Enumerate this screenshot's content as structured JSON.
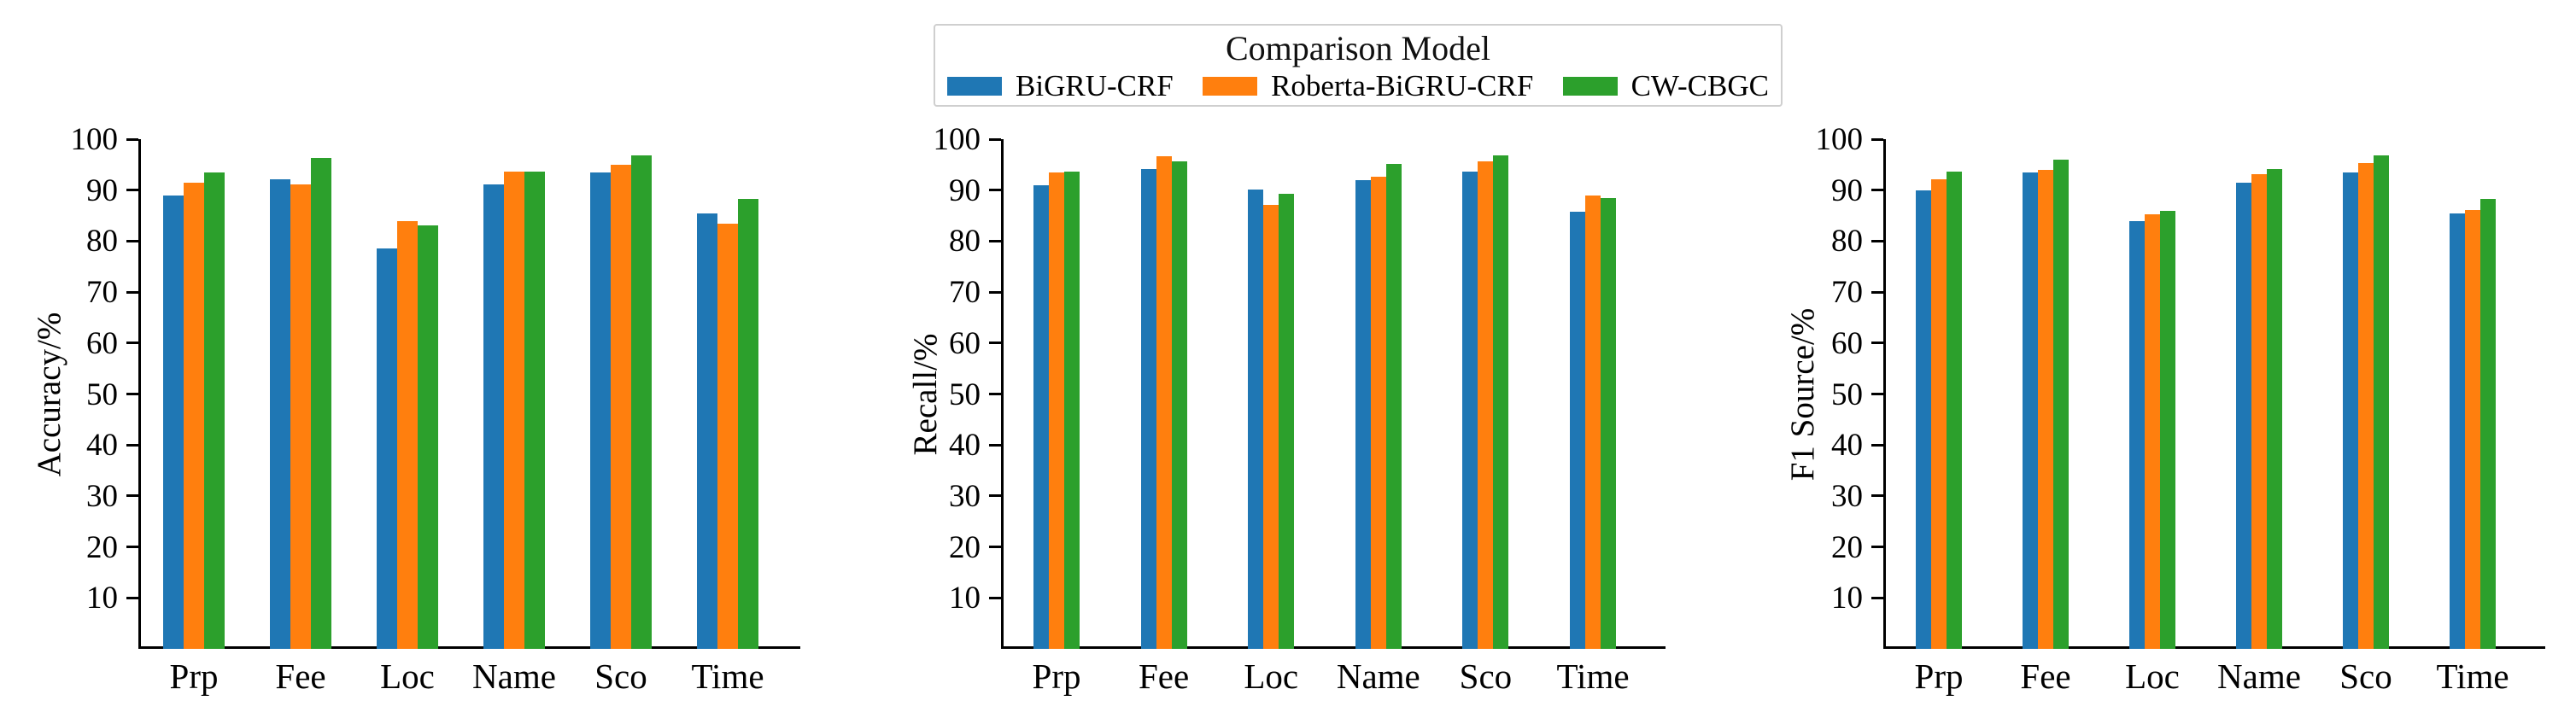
{
  "legend": {
    "title": "Comparison Model",
    "position": "upper center",
    "entries": [
      {
        "label": "BiGRU-CRF",
        "color": "#1f77b4",
        "icon": "blue-swatch-icon"
      },
      {
        "label": "Roberta-BiGRU-CRF",
        "color": "#ff7f0e",
        "icon": "orange-swatch-icon"
      },
      {
        "label": "CW-CBGC",
        "color": "#2ca02c",
        "icon": "green-swatch-icon"
      }
    ]
  },
  "chart_data": [
    {
      "type": "bar",
      "title": "",
      "xlabel": "",
      "ylabel": "Accuracy/%",
      "categories": [
        "Prp",
        "Fee",
        "Loc",
        "Name",
        "Sco",
        "Time"
      ],
      "series": [
        {
          "name": "BiGRU-CRF",
          "color": "#1f77b4",
          "values": [
            88.9,
            92.1,
            78.6,
            91.2,
            93.4,
            85.4
          ]
        },
        {
          "name": "Roberta-BiGRU-CRF",
          "color": "#ff7f0e",
          "values": [
            91.4,
            91.1,
            84.0,
            93.7,
            94.9,
            83.4
          ]
        },
        {
          "name": "CW-CBGC",
          "color": "#2ca02c",
          "values": [
            93.4,
            96.3,
            83.0,
            93.7,
            96.8,
            88.3
          ]
        }
      ],
      "ylim": [
        0,
        100
      ],
      "yticks": [
        10,
        20,
        30,
        40,
        50,
        60,
        70,
        80,
        90,
        100
      ],
      "grid": false
    },
    {
      "type": "bar",
      "title": "",
      "xlabel": "",
      "ylabel": "Recall/%",
      "categories": [
        "Prp",
        "Fee",
        "Loc",
        "Name",
        "Sco",
        "Time"
      ],
      "series": [
        {
          "name": "BiGRU-CRF",
          "color": "#1f77b4",
          "values": [
            90.9,
            94.2,
            90.2,
            92.0,
            93.7,
            85.7
          ]
        },
        {
          "name": "Roberta-BiGRU-CRF",
          "color": "#ff7f0e",
          "values": [
            93.4,
            96.7,
            87.1,
            92.7,
            95.7,
            89.0
          ]
        },
        {
          "name": "CW-CBGC",
          "color": "#2ca02c",
          "values": [
            93.6,
            95.6,
            89.2,
            95.2,
            96.8,
            88.5
          ]
        }
      ],
      "ylim": [
        0,
        100
      ],
      "yticks": [
        10,
        20,
        30,
        40,
        50,
        60,
        70,
        80,
        90,
        100
      ],
      "grid": false
    },
    {
      "type": "bar",
      "title": "",
      "xlabel": "",
      "ylabel": "F1 Source/%",
      "categories": [
        "Prp",
        "Fee",
        "Loc",
        "Name",
        "Sco",
        "Time"
      ],
      "series": [
        {
          "name": "BiGRU-CRF",
          "color": "#1f77b4",
          "values": [
            90.0,
            93.5,
            83.9,
            91.4,
            93.4,
            85.4
          ]
        },
        {
          "name": "Roberta-BiGRU-CRF",
          "color": "#ff7f0e",
          "values": [
            92.2,
            93.9,
            85.2,
            93.1,
            95.3,
            86.1
          ]
        },
        {
          "name": "CW-CBGC",
          "color": "#2ca02c",
          "values": [
            93.6,
            96.0,
            86.0,
            94.2,
            96.9,
            88.3
          ]
        }
      ],
      "ylim": [
        0,
        100
      ],
      "yticks": [
        10,
        20,
        30,
        40,
        50,
        60,
        70,
        80,
        90,
        100
      ],
      "grid": false
    }
  ]
}
